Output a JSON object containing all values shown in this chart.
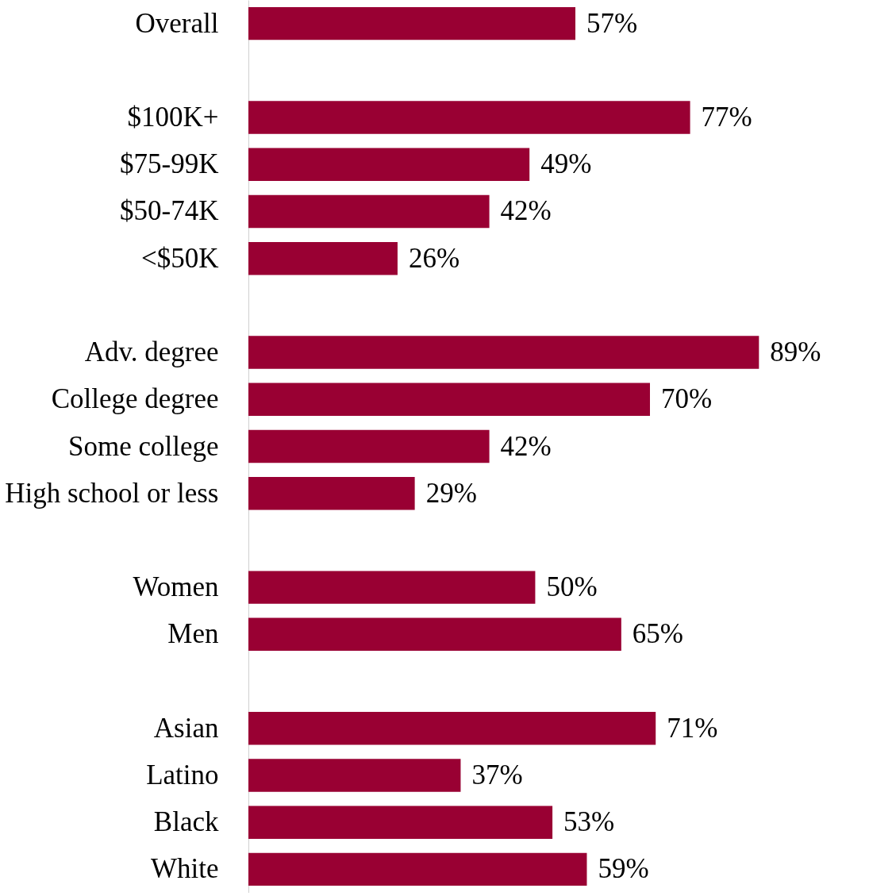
{
  "chart_data": {
    "type": "bar",
    "orientation": "horizontal",
    "categories": [
      "Overall",
      null,
      "$100K+",
      "$75-99K",
      "$50-74K",
      "<$50K",
      null,
      "Adv. degree",
      "College degree",
      "Some college",
      "High school or less",
      null,
      "Women",
      "Men",
      null,
      "Asian",
      "Latino",
      "Black",
      "White"
    ],
    "values": [
      57,
      null,
      77,
      49,
      42,
      26,
      null,
      89,
      70,
      42,
      29,
      null,
      50,
      65,
      null,
      71,
      37,
      53,
      59
    ],
    "value_labels": [
      "57%",
      null,
      "77%",
      "49%",
      "42%",
      "26%",
      null,
      "89%",
      "70%",
      "42%",
      "29%",
      null,
      "50%",
      "65%",
      null,
      "71%",
      "37%",
      "53%",
      "59%"
    ],
    "color": "#990033",
    "tick_labels": "y"
  }
}
